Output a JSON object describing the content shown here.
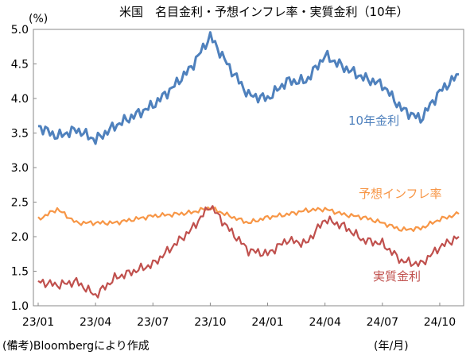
{
  "chart_data": {
    "type": "line",
    "title": "米国　名目金利・予想インフレ率・実質金利（10年）",
    "ylabel": "(%)",
    "xlabel": "(年/月)",
    "source_note": "(備考)Bloombergにより作成",
    "ylim": [
      1.0,
      5.0
    ],
    "y_ticks": [
      "5.0",
      "4.5",
      "4.0",
      "3.5",
      "3.0",
      "2.5",
      "2.0",
      "1.5",
      "1.0"
    ],
    "x_ticks": [
      "23/01",
      "23/04",
      "23/07",
      "23/10",
      "24/01",
      "24/04",
      "24/07",
      "24/10"
    ],
    "grid": false,
    "x": [
      "2023-01",
      "2023-02",
      "2023-03",
      "2023-04",
      "2023-05",
      "2023-06",
      "2023-07",
      "2023-08",
      "2023-09",
      "2023-10",
      "2023-11",
      "2023-12",
      "2024-01",
      "2024-02",
      "2024-03",
      "2024-04",
      "2024-05",
      "2024-06",
      "2024-07",
      "2024-08",
      "2024-09",
      "2024-10",
      "2024-11"
    ],
    "series": [
      {
        "name": "10年金利",
        "color": "#4f81bd",
        "values": [
          3.6,
          3.45,
          3.55,
          3.4,
          3.6,
          3.75,
          3.9,
          4.15,
          4.45,
          4.9,
          4.45,
          4.05,
          4.0,
          4.25,
          4.25,
          4.62,
          4.45,
          4.3,
          4.2,
          3.85,
          3.7,
          4.1,
          4.35
        ]
      },
      {
        "name": "予想インフレ率",
        "color": "#f79646",
        "values": [
          2.25,
          2.4,
          2.2,
          2.2,
          2.2,
          2.25,
          2.3,
          2.32,
          2.35,
          2.42,
          2.3,
          2.2,
          2.28,
          2.32,
          2.38,
          2.4,
          2.32,
          2.28,
          2.2,
          2.1,
          2.12,
          2.25,
          2.33
        ]
      },
      {
        "name": "実質金利",
        "color": "#c0504d",
        "values": [
          1.35,
          1.3,
          1.35,
          1.15,
          1.4,
          1.5,
          1.6,
          1.85,
          2.1,
          2.45,
          2.1,
          1.8,
          1.75,
          1.95,
          1.9,
          2.25,
          2.15,
          1.95,
          1.9,
          1.65,
          1.6,
          1.85,
          2.0
        ]
      }
    ]
  }
}
